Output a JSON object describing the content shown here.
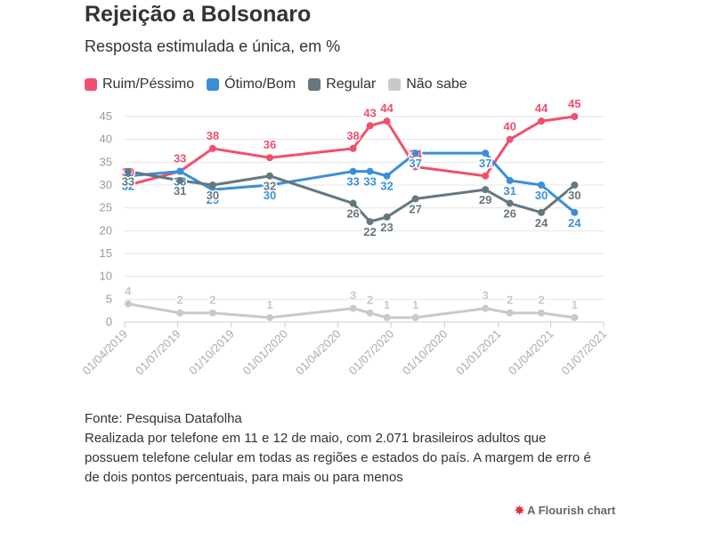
{
  "chart_data": {
    "type": "line",
    "title": "Rejeição a Bolsonaro",
    "subtitle": "Resposta estimulada e única, em %",
    "x": [
      "2019-04-07",
      "2019-07-05",
      "2019-08-30",
      "2019-12-06",
      "2020-04-27",
      "2020-05-26",
      "2020-06-24",
      "2020-08-12",
      "2020-12-10",
      "2021-01-21",
      "2021-03-16",
      "2021-05-12"
    ],
    "series": [
      {
        "name": "Ruim/Péssimo",
        "color": "#f0506e",
        "values": [
          30,
          33,
          38,
          36,
          38,
          43,
          44,
          34,
          32,
          40,
          44,
          45
        ]
      },
      {
        "name": "Ótimo/Bom",
        "color": "#3a8fd9",
        "values": [
          32,
          33,
          29,
          30,
          33,
          33,
          32,
          37,
          37,
          31,
          30,
          24
        ]
      },
      {
        "name": "Regular",
        "color": "#65777f",
        "values": [
          33,
          31,
          30,
          32,
          26,
          22,
          23,
          27,
          29,
          26,
          24,
          30
        ]
      },
      {
        "name": "Não sabe",
        "color": "#c9c9c9",
        "values": [
          4,
          2,
          2,
          1,
          3,
          2,
          1,
          1,
          3,
          2,
          2,
          1
        ]
      }
    ],
    "xlim": [
      "2019-04-01",
      "2021-07-01"
    ],
    "xticks": [
      {
        "value": "2019-04-01",
        "label": "01/04/2019"
      },
      {
        "value": "2019-07-01",
        "label": "01/07/2019"
      },
      {
        "value": "2019-10-01",
        "label": "01/10/2019"
      },
      {
        "value": "2020-01-01",
        "label": "01/01/2020"
      },
      {
        "value": "2020-04-01",
        "label": "01/04/2020"
      },
      {
        "value": "2020-07-01",
        "label": "01/07/2020"
      },
      {
        "value": "2020-10-01",
        "label": "01/10/2020"
      },
      {
        "value": "2021-01-01",
        "label": "01/01/2021"
      },
      {
        "value": "2021-04-01",
        "label": "01/04/2021"
      },
      {
        "value": "2021-07-01",
        "label": "01/07/2021"
      }
    ],
    "ylim": [
      0,
      45
    ],
    "yticks": [
      0,
      5,
      10,
      15,
      20,
      25,
      30,
      35,
      40,
      45
    ],
    "grid": true,
    "legend": "top",
    "source": "Fonte: Pesquisa Datafolha",
    "note": "Realizada por telefone em 11 e 12 de maio, com 2.071 brasileiros adultos que possuem telefone celular em todas as regiões e estados do país. A margem de erro é de dois pontos percentuais, para mais ou para menos",
    "credit": "A Flourish chart"
  }
}
